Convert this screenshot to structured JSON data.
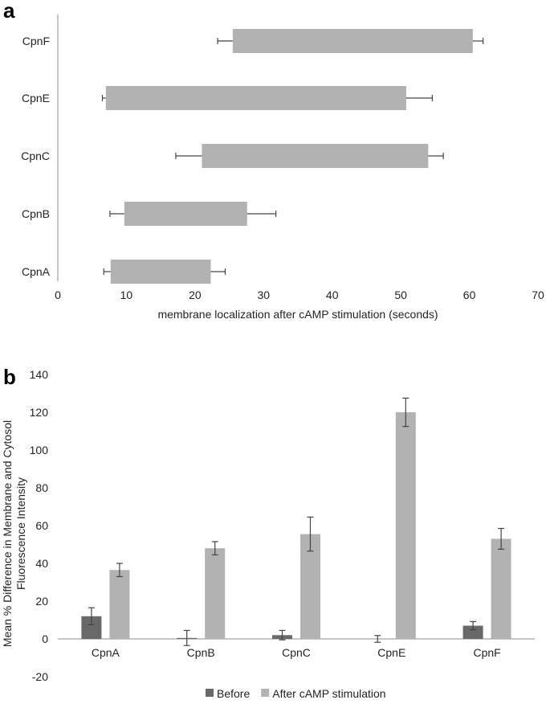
{
  "panels": {
    "a": "a",
    "b": "b"
  },
  "chart_data": [
    {
      "type": "bar",
      "orientation": "horizontal",
      "title": "",
      "xlabel": "membrane localization after cAMP stimulation (seconds)",
      "ylabel": "",
      "categories": [
        "CpnF",
        "CpnE",
        "CpnC",
        "CpnB",
        "CpnA"
      ],
      "start": [
        25.5,
        7,
        21,
        9.7,
        7.7
      ],
      "start_err": [
        2.2,
        0.5,
        3.8,
        2.1,
        1
      ],
      "end": [
        60.5,
        50.8,
        54,
        27.6,
        22.3
      ],
      "end_err": [
        1.5,
        3.8,
        2.2,
        4.2,
        2.1
      ],
      "xlim": [
        0,
        70
      ],
      "xticks": [
        0,
        10,
        20,
        30,
        40,
        50,
        60,
        70
      ],
      "colors": {
        "bar": "#b2b2b2"
      }
    },
    {
      "type": "bar",
      "title": "",
      "xlabel": "",
      "ylabel": "Mean % Difference in  Membrane and Cytosol Fluorescence Intensity",
      "ylabel_lines": [
        "Mean % Difference in  Membrane and Cytosol",
        "Fluorescence Intensity"
      ],
      "categories": [
        "CpnA",
        "CpnB",
        "CpnC",
        "CpnE",
        "CpnF"
      ],
      "series": [
        {
          "name": "Before",
          "values": [
            12,
            0.5,
            2,
            0,
            7
          ],
          "errors": [
            4.5,
            4,
            2.5,
            1.8,
            2.2
          ],
          "color": "#696969"
        },
        {
          "name": "After cAMP stimulation",
          "values": [
            36.5,
            48,
            55.5,
            120,
            53
          ],
          "errors": [
            3.5,
            3.5,
            9,
            7.5,
            5.5
          ],
          "color": "#b2b2b2"
        }
      ],
      "ylim": [
        -20,
        140
      ],
      "yticks": [
        -20,
        0,
        20,
        40,
        60,
        80,
        100,
        120,
        140
      ],
      "legend": "bottom"
    }
  ]
}
